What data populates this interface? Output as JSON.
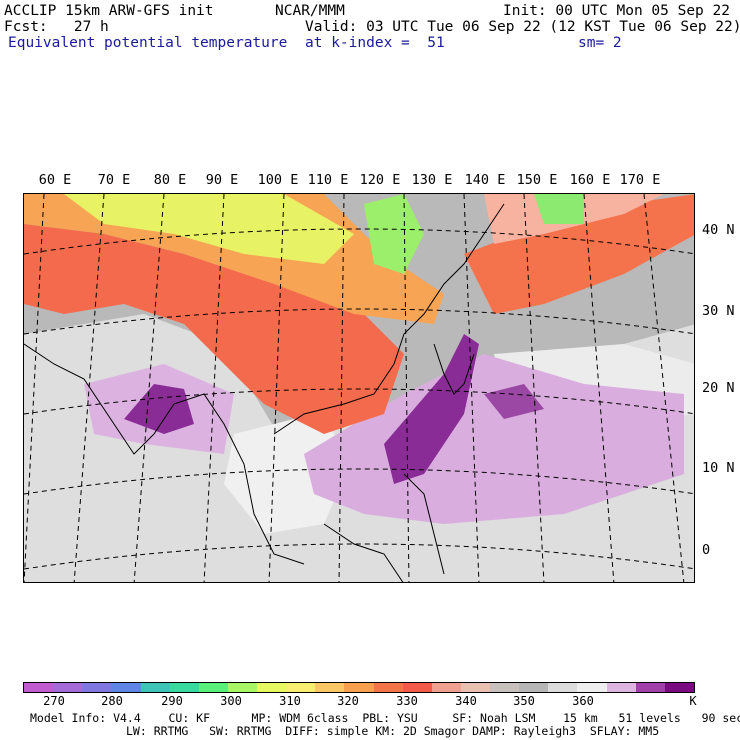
{
  "header": {
    "line1_left": "ACCLIP 15km ARW-GFS init",
    "line1_center": "NCAR/MMM",
    "line1_right": "Init: 00 UTC Mon 05 Sep 22",
    "line2_left": "Fcst:   27 h",
    "line2_right": "Valid: 03 UTC Tue 06 Sep 22 (12 KST Tue 06 Sep 22)",
    "line3_left": "Equivalent potential temperature",
    "line3_center": "at k-index =  51",
    "line3_right": "sm= 2"
  },
  "map": {
    "lon_labels": [
      "60 E",
      "70 E",
      "80 E",
      "90 E",
      "100 E",
      "110 E",
      "120 E",
      "130 E",
      "140 E",
      "150 E",
      "160 E",
      "170 E"
    ],
    "lat_labels": [
      "40 N",
      "30 N",
      "20 N",
      "10 N",
      "0"
    ]
  },
  "colorbar": {
    "colors": [
      "#c25bd0",
      "#a36ad8",
      "#7f78e0",
      "#5f86e6",
      "#3fc5b8",
      "#3ad9a0",
      "#57f07a",
      "#a8f565",
      "#e8f860",
      "#f8ee70",
      "#f9c864",
      "#f7a050",
      "#f4744a",
      "#f35a4a",
      "#f0a090",
      "#e8c0b0",
      "#c8c0bc",
      "#b6b6b6",
      "#dcdcdc",
      "#eeeeee",
      "#ddb5e0",
      "#a040a8",
      "#7a0a80"
    ],
    "tick_labels": [
      "270",
      "280",
      "290",
      "300",
      "310",
      "320",
      "330",
      "340",
      "350",
      "360",
      "K"
    ]
  },
  "info": {
    "line1": "Model Info: V4.4    CU: KF      MP: WDM 6class  PBL: YSU     SF: Noah LSM    15 km   51 levels   90 sec",
    "line2": "LW: RRTMG   SW: RRTMG  DIFF: simple KM: 2D Smagor DAMP: Rayleigh3  SFLAY: MM5"
  }
}
